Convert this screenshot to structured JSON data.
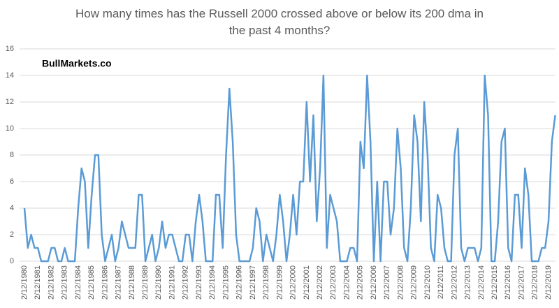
{
  "chart_data": {
    "type": "line",
    "title": "How many times has the Russell 2000 crossed above or below its 200 dma in the past 4 months?",
    "annotation": "BullMarkets.co",
    "categories": [
      "2/12/1980",
      null,
      null,
      null,
      "2/12/1981",
      null,
      null,
      null,
      "2/12/1982",
      null,
      null,
      null,
      "2/12/1983",
      null,
      null,
      null,
      "2/12/1984",
      null,
      null,
      null,
      "2/12/1985",
      null,
      null,
      null,
      "2/12/1986",
      null,
      null,
      null,
      "2/12/1987",
      null,
      null,
      null,
      "2/12/1988",
      null,
      null,
      null,
      "2/12/1989",
      null,
      null,
      null,
      "2/12/1990",
      null,
      null,
      null,
      "2/12/1991",
      null,
      null,
      null,
      "2/12/1992",
      null,
      null,
      null,
      "2/12/1993",
      null,
      null,
      null,
      "2/12/1994",
      null,
      null,
      null,
      "2/12/1995",
      null,
      null,
      null,
      "2/12/1996",
      null,
      null,
      null,
      "2/12/1997",
      null,
      null,
      null,
      "2/12/1998",
      null,
      null,
      null,
      "2/12/1999",
      null,
      null,
      null,
      "2/12/2000",
      null,
      null,
      null,
      "2/12/2001",
      null,
      null,
      null,
      "2/12/2002",
      null,
      null,
      null,
      "2/12/2003",
      null,
      null,
      null,
      "2/12/2004",
      null,
      null,
      null,
      "2/12/2005",
      null,
      null,
      null,
      "2/12/2006",
      null,
      null,
      null,
      "2/12/2007",
      null,
      null,
      null,
      "2/12/2008",
      null,
      null,
      null,
      "2/12/2009",
      null,
      null,
      null,
      "2/12/2010",
      null,
      null,
      null,
      "2/12/2011",
      null,
      null,
      null,
      "2/12/2012",
      null,
      null,
      null,
      "2/12/2013",
      null,
      null,
      null,
      "2/12/2014",
      null,
      null,
      null,
      "2/12/2015",
      null,
      null,
      null,
      "2/12/2016",
      null,
      null,
      null,
      "2/12/2017",
      null,
      null,
      null,
      "2/12/2018",
      null,
      null,
      null,
      "2/12/2019",
      null,
      null
    ],
    "series": [
      {
        "color": "#5b9bd5",
        "values": [
          4,
          1,
          2,
          1,
          1,
          0,
          0,
          0,
          1,
          1,
          0,
          0,
          1,
          0,
          0,
          0,
          4,
          7,
          6,
          1,
          5,
          8,
          8,
          2,
          0,
          1,
          2,
          0,
          1,
          3,
          2,
          1,
          1,
          1,
          5,
          5,
          0,
          1,
          2,
          0,
          1,
          3,
          1,
          2,
          2,
          1,
          0,
          0,
          2,
          2,
          0,
          3,
          5,
          3,
          0,
          0,
          0,
          5,
          5,
          1,
          8,
          13,
          9,
          2,
          0,
          0,
          0,
          0,
          1,
          4,
          3,
          0,
          2,
          1,
          0,
          2,
          5,
          3,
          0,
          2,
          5,
          2,
          6,
          6,
          12,
          6,
          11,
          3,
          7,
          14,
          1,
          5,
          4,
          3,
          0,
          0,
          0,
          1,
          1,
          0,
          9,
          7,
          14,
          9,
          0,
          6,
          0,
          6,
          6,
          2,
          4,
          10,
          7,
          1,
          0,
          4,
          11,
          9,
          3,
          12,
          8,
          1,
          0,
          5,
          4,
          1,
          0,
          0,
          8,
          10,
          1,
          0,
          1,
          1,
          1,
          0,
          1,
          14,
          11,
          0,
          0,
          3,
          9,
          10,
          1,
          0,
          5,
          5,
          1,
          7,
          5,
          0,
          0,
          0,
          1,
          1,
          3,
          9,
          11
        ]
      }
    ],
    "ylim": [
      0,
      16
    ],
    "yticks": [
      0,
      2,
      4,
      6,
      8,
      10,
      12,
      14,
      16
    ],
    "grid": true
  }
}
